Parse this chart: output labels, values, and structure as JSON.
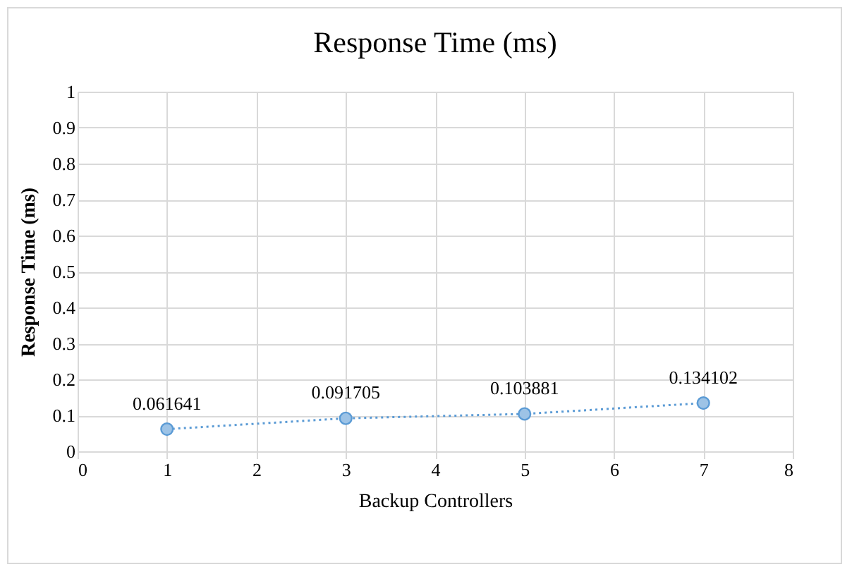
{
  "chart_data": {
    "type": "line",
    "title": "Response Time (ms)",
    "xlabel": "Backup Controllers",
    "ylabel": "Response Time (ms)",
    "x": [
      1,
      3,
      5,
      7
    ],
    "series": [
      {
        "color": "#5b9bd5",
        "values": [
          0.061641,
          0.091705,
          0.103881,
          0.134102
        ]
      }
    ],
    "xlim": [
      0,
      8
    ],
    "xticks": [
      0,
      1,
      2,
      3,
      4,
      5,
      6,
      7,
      8
    ],
    "ylim": [
      0,
      1
    ],
    "yticks": [
      0,
      0.1,
      0.2,
      0.3,
      0.4,
      0.5,
      0.6,
      0.7,
      0.8,
      0.9,
      1
    ],
    "grid": true,
    "marker": "circle",
    "line_style": "dotted",
    "data_labels": true
  }
}
